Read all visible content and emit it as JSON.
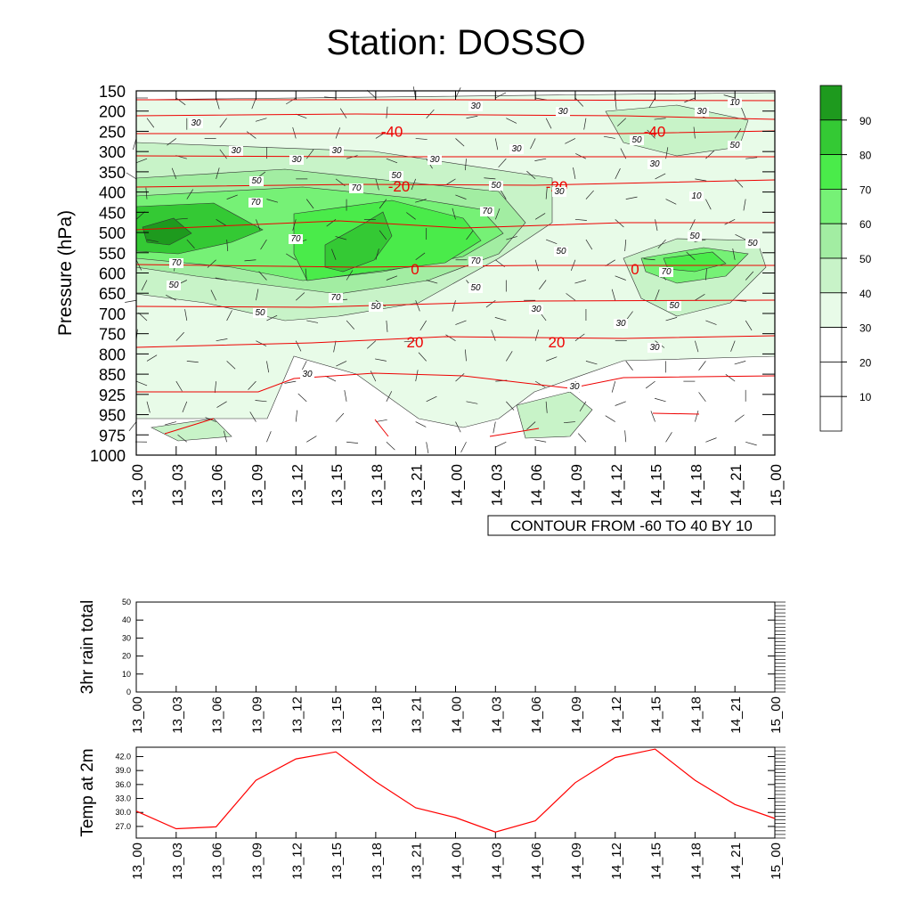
{
  "chart_data": [
    {
      "type": "heatmap",
      "title": "Station: DOSSO",
      "ylabel": "Pressure (hPa)",
      "x_ticks": [
        "13_00",
        "13_03",
        "13_06",
        "13_09",
        "13_12",
        "13_15",
        "13_18",
        "13_21",
        "14_00",
        "14_03",
        "14_06",
        "14_09",
        "14_12",
        "14_15",
        "14_18",
        "14_21",
        "15_00"
      ],
      "y_ticks": [
        "150",
        "200",
        "250",
        "300",
        "350",
        "400",
        "450",
        "500",
        "550",
        "600",
        "650",
        "700",
        "750",
        "800",
        "850",
        "925",
        "950",
        "975",
        "1000"
      ],
      "colorbar_labels": [
        "10",
        "20",
        "30",
        "40",
        "50",
        "60",
        "70",
        "80",
        "90"
      ],
      "colorbar_colors": [
        "#ffffff",
        "#ffffff",
        "#ffffff",
        "#e8fbe8",
        "#c8f3c8",
        "#a2eda2",
        "#76f176",
        "#4aeb4a",
        "#34c934",
        "#1e9a1e"
      ],
      "contour_info": "CONTOUR FROM -60 TO 40 BY 10",
      "temp_contours": [
        {
          "label": "-40",
          "pressure": 250
        },
        {
          "label": "-20",
          "pressure": 385
        },
        {
          "label": "0",
          "pressure": 590
        },
        {
          "label": "20",
          "pressure": 770
        }
      ],
      "rh_labels": [
        "10",
        "30",
        "50",
        "70"
      ]
    },
    {
      "type": "line",
      "ylabel": "3hr rain total",
      "ylim": [
        0,
        50
      ],
      "y_ticks": [
        "0",
        "10",
        "20",
        "30",
        "40",
        "50"
      ],
      "x_ticks": [
        "13_00",
        "13_03",
        "13_06",
        "13_09",
        "13_12",
        "13_15",
        "13_18",
        "13_21",
        "14_00",
        "14_03",
        "14_06",
        "14_09",
        "14_12",
        "14_15",
        "14_18",
        "14_21",
        "15_00"
      ],
      "values": []
    },
    {
      "type": "line",
      "ylabel": "Temp at 2m",
      "ylim": [
        24.5,
        44.0
      ],
      "y_ticks": [
        "27.0",
        "30.0",
        "33.0",
        "36.0",
        "39.0",
        "42.0"
      ],
      "x_ticks": [
        "13_00",
        "13_03",
        "13_06",
        "13_09",
        "13_12",
        "13_15",
        "13_18",
        "13_21",
        "14_00",
        "14_03",
        "14_06",
        "14_09",
        "14_12",
        "14_15",
        "14_18",
        "14_21",
        "15_00"
      ],
      "values": [
        30.3,
        26.5,
        26.9,
        36.9,
        41.5,
        43.0,
        36.6,
        31.0,
        28.9,
        25.8,
        28.2,
        36.4,
        41.8,
        43.6,
        36.9,
        31.7,
        28.7
      ],
      "color": "#ff0000"
    }
  ]
}
